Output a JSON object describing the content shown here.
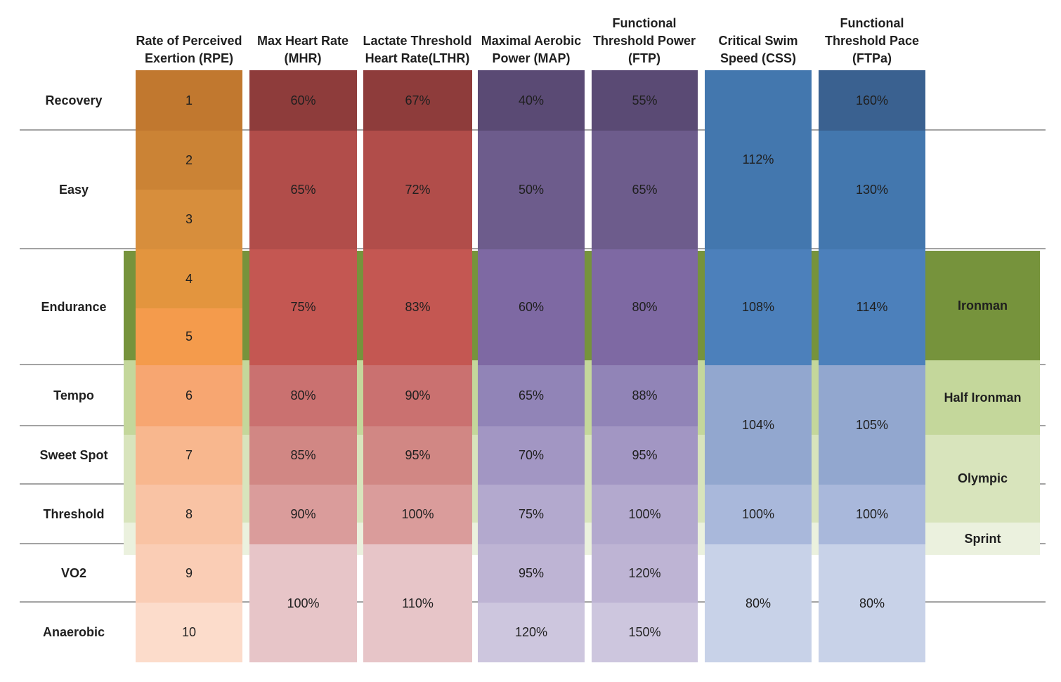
{
  "page": {
    "background": "#FFFFFF",
    "gridline_color": "#A3A3A3",
    "text_color": "#1F1F1F"
  },
  "table": {
    "zones": [
      {
        "label": "Recovery"
      },
      {
        "label": "Easy"
      },
      {
        "label": "Endurance"
      },
      {
        "label": "Tempo"
      },
      {
        "label": "Sweet Spot"
      },
      {
        "label": "Threshold"
      },
      {
        "label": "VO2"
      },
      {
        "label": "Anaerobic"
      }
    ],
    "columns": [
      {
        "id": "rpe",
        "header": "Rate of Perceived\nExertion (RPE)",
        "cells": [
          {
            "rows": [
              0,
              0
            ],
            "value": "1",
            "color": "#C1782F"
          },
          {
            "rows": [
              1,
              1
            ],
            "value": "2",
            "color": "#CB8335"
          },
          {
            "rows": [
              2,
              2
            ],
            "value": "3",
            "color": "#D78E3C"
          },
          {
            "rows": [
              3,
              3
            ],
            "value": "4",
            "color": "#E3953E"
          },
          {
            "rows": [
              4,
              4
            ],
            "value": "5",
            "color": "#F49B4C"
          },
          {
            "rows": [
              5,
              5
            ],
            "value": "6",
            "color": "#F7A671"
          },
          {
            "rows": [
              6,
              6
            ],
            "value": "7",
            "color": "#F8B78E"
          },
          {
            "rows": [
              7,
              7
            ],
            "value": "8",
            "color": "#F9C3A4"
          },
          {
            "rows": [
              8,
              8
            ],
            "value": "9",
            "color": "#FACDB5"
          },
          {
            "rows": [
              9,
              9
            ],
            "value": "10",
            "color": "#FCDCCB"
          }
        ]
      },
      {
        "id": "mhr",
        "header": "Max Heart Rate\n(MHR)",
        "cells": [
          {
            "rows": [
              0,
              0
            ],
            "value": "60%",
            "color": "#8E3C3B"
          },
          {
            "rows": [
              1,
              2
            ],
            "value": "65%",
            "color": "#B14D4A"
          },
          {
            "rows": [
              3,
              4
            ],
            "value": "75%",
            "color": "#C45752"
          },
          {
            "rows": [
              5,
              5
            ],
            "value": "80%",
            "color": "#CA7170"
          },
          {
            "rows": [
              6,
              6
            ],
            "value": "85%",
            "color": "#D18784"
          },
          {
            "rows": [
              7,
              7
            ],
            "value": "90%",
            "color": "#DA9C9B"
          },
          {
            "rows": [
              8,
              9
            ],
            "value": "100%",
            "color": "#E7C5C8"
          }
        ]
      },
      {
        "id": "lthr",
        "header": "Lactate Threshold\nHeart Rate(LTHR)",
        "cells": [
          {
            "rows": [
              0,
              0
            ],
            "value": "67%",
            "color": "#8E3C3B"
          },
          {
            "rows": [
              1,
              2
            ],
            "value": "72%",
            "color": "#B14D4A"
          },
          {
            "rows": [
              3,
              4
            ],
            "value": "83%",
            "color": "#C45752"
          },
          {
            "rows": [
              5,
              5
            ],
            "value": "90%",
            "color": "#CA7170"
          },
          {
            "rows": [
              6,
              6
            ],
            "value": "95%",
            "color": "#D18784"
          },
          {
            "rows": [
              7,
              7
            ],
            "value": "100%",
            "color": "#DA9C9B"
          },
          {
            "rows": [
              8,
              9
            ],
            "value": "110%",
            "color": "#E7C5C8"
          }
        ]
      },
      {
        "id": "map",
        "header": "Maximal Aerobic\nPower (MAP)",
        "cells": [
          {
            "rows": [
              0,
              0
            ],
            "value": "40%",
            "color": "#5A4A74"
          },
          {
            "rows": [
              1,
              2
            ],
            "value": "50%",
            "color": "#6D5C8C"
          },
          {
            "rows": [
              3,
              4
            ],
            "value": "60%",
            "color": "#7E69A3"
          },
          {
            "rows": [
              5,
              5
            ],
            "value": "65%",
            "color": "#9184B7"
          },
          {
            "rows": [
              6,
              6
            ],
            "value": "70%",
            "color": "#A296C3"
          },
          {
            "rows": [
              7,
              7
            ],
            "value": "75%",
            "color": "#B3A9CE"
          },
          {
            "rows": [
              8,
              8
            ],
            "value": "95%",
            "color": "#BEB4D4"
          },
          {
            "rows": [
              9,
              9
            ],
            "value": "120%",
            "color": "#CDC6DE"
          }
        ]
      },
      {
        "id": "ftp",
        "header": "Functional\nThreshold Power\n(FTP)",
        "cells": [
          {
            "rows": [
              0,
              0
            ],
            "value": "55%",
            "color": "#5A4A74"
          },
          {
            "rows": [
              1,
              2
            ],
            "value": "65%",
            "color": "#6D5C8C"
          },
          {
            "rows": [
              3,
              4
            ],
            "value": "80%",
            "color": "#7E69A3"
          },
          {
            "rows": [
              5,
              5
            ],
            "value": "88%",
            "color": "#9184B7"
          },
          {
            "rows": [
              6,
              6
            ],
            "value": "95%",
            "color": "#A296C3"
          },
          {
            "rows": [
              7,
              7
            ],
            "value": "100%",
            "color": "#B3A9CE"
          },
          {
            "rows": [
              8,
              8
            ],
            "value": "120%",
            "color": "#BEB4D4"
          },
          {
            "rows": [
              9,
              9
            ],
            "value": "150%",
            "color": "#CDC6DE"
          }
        ]
      },
      {
        "id": "css",
        "header": "Critical Swim\nSpeed (CSS)",
        "cells": [
          {
            "rows": [
              0,
              2
            ],
            "value": "112%",
            "color": "#4377AE"
          },
          {
            "rows": [
              3,
              4
            ],
            "value": "108%",
            "color": "#4C80BB"
          },
          {
            "rows": [
              5,
              6
            ],
            "value": "104%",
            "color": "#92A7CF"
          },
          {
            "rows": [
              7,
              7
            ],
            "value": "100%",
            "color": "#A9B8DB"
          },
          {
            "rows": [
              8,
              9
            ],
            "value": "80%",
            "color": "#C8D2E8"
          }
        ]
      },
      {
        "id": "ftpa",
        "header": "Functional\nThreshold Pace\n(FTPa)",
        "cells": [
          {
            "rows": [
              0,
              0
            ],
            "value": "160%",
            "color": "#3A6190"
          },
          {
            "rows": [
              1,
              2
            ],
            "value": "130%",
            "color": "#4377AE"
          },
          {
            "rows": [
              3,
              4
            ],
            "value": "114%",
            "color": "#4C80BB"
          },
          {
            "rows": [
              5,
              6
            ],
            "value": "105%",
            "color": "#92A7CF"
          },
          {
            "rows": [
              7,
              7
            ],
            "value": "100%",
            "color": "#A9B8DB"
          },
          {
            "rows": [
              8,
              9
            ],
            "value": "80%",
            "color": "#C8D2E8"
          }
        ]
      }
    ],
    "races": [
      {
        "label": "Ironman",
        "color": "#76933C"
      },
      {
        "label": "Half Ironman",
        "color": "#C4D79B"
      },
      {
        "label": "Olympic",
        "color": "#D8E4BC"
      },
      {
        "label": "Sprint",
        "color": "#EBF1DE"
      }
    ]
  },
  "chart_data": {
    "type": "table",
    "title": "Triathlon training intensity zones by metric",
    "row_categories": [
      "Recovery",
      "Easy",
      "Easy",
      "Endurance",
      "Endurance",
      "Tempo",
      "Sweet Spot",
      "Threshold",
      "VO2",
      "Anaerobic"
    ],
    "series": [
      {
        "name": "Rate of Perceived Exertion (RPE)",
        "values": [
          "1",
          "2",
          "3",
          "4",
          "5",
          "6",
          "7",
          "8",
          "9",
          "10"
        ]
      },
      {
        "name": "Max Heart Rate (MHR)",
        "values": [
          "60%",
          "65%",
          "65%",
          "75%",
          "75%",
          "80%",
          "85%",
          "90%",
          "100%",
          "100%"
        ]
      },
      {
        "name": "Lactate Threshold Heart Rate(LTHR)",
        "values": [
          "67%",
          "72%",
          "72%",
          "83%",
          "83%",
          "90%",
          "95%",
          "100%",
          "110%",
          "110%"
        ]
      },
      {
        "name": "Maximal Aerobic Power (MAP)",
        "values": [
          "40%",
          "50%",
          "50%",
          "60%",
          "60%",
          "65%",
          "70%",
          "75%",
          "95%",
          "120%"
        ]
      },
      {
        "name": "Functional Threshold Power (FTP)",
        "values": [
          "55%",
          "65%",
          "65%",
          "80%",
          "80%",
          "88%",
          "95%",
          "100%",
          "120%",
          "150%"
        ]
      },
      {
        "name": "Critical Swim Speed (CSS)",
        "values": [
          "112%",
          "112%",
          "112%",
          "108%",
          "108%",
          "104%",
          "104%",
          "100%",
          "80%",
          "80%"
        ]
      },
      {
        "name": "Functional Threshold Pace (FTPa)",
        "values": [
          "160%",
          "130%",
          "130%",
          "114%",
          "114%",
          "105%",
          "105%",
          "100%",
          "80%",
          "80%"
        ]
      }
    ],
    "race_band_labels": [
      "Ironman",
      "Half Ironman",
      "Olympic",
      "Sprint"
    ],
    "legend_position": "right",
    "grid": true
  }
}
